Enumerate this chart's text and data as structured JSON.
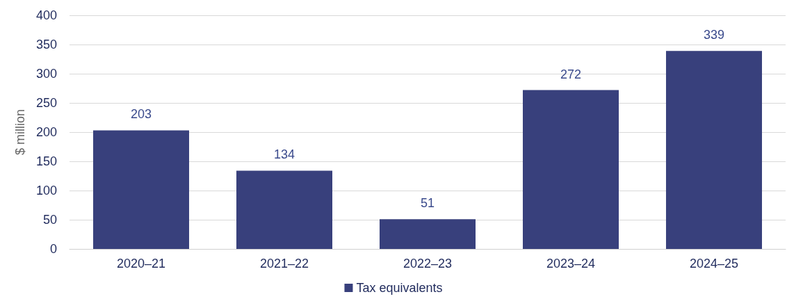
{
  "chart_data": {
    "type": "bar",
    "ylabel": "$ million",
    "categories": [
      "2020–21",
      "2021–22",
      "2022–23",
      "2023–24",
      "2024–25"
    ],
    "series": [
      {
        "name": "Tax equivalents",
        "color": "#38407c",
        "values": [
          203,
          134,
          51,
          272,
          339
        ]
      }
    ],
    "ylim": [
      0,
      400
    ],
    "yticks": [
      0,
      50,
      100,
      150,
      200,
      250,
      300,
      350,
      400
    ],
    "grid": "y",
    "legend": "bottom",
    "data_labels": true
  }
}
